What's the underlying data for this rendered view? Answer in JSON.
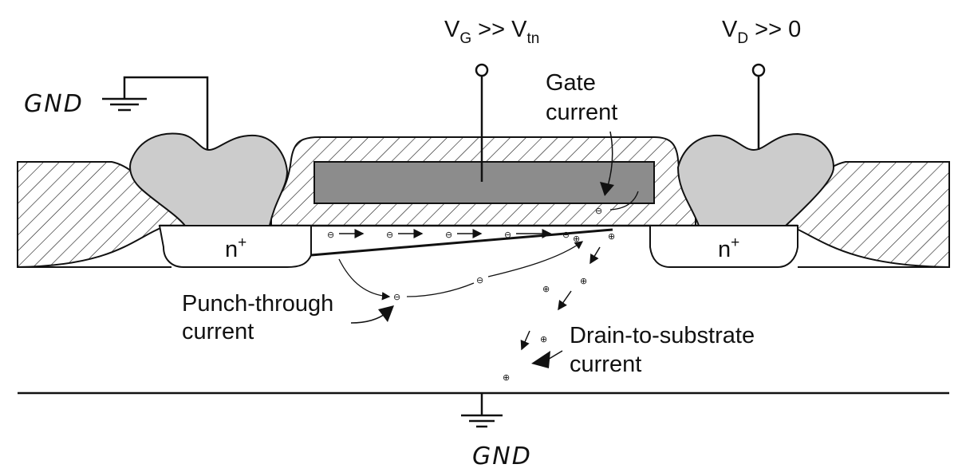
{
  "labels": {
    "gate_voltage": {
      "main": "V",
      "sub": "G",
      "rest": " >> V",
      "sub2": "tn"
    },
    "drain_voltage": {
      "main": "V",
      "sub": "D",
      "rest": " >> 0"
    },
    "gnd_top_left": "GND",
    "gnd_bottom": "GND",
    "gate_current_line1": "Gate",
    "gate_current_line2": "current",
    "n_plus_left": "n",
    "n_plus_right": "n",
    "n_plus_sup": "+",
    "punch_through_line1": "Punch-through",
    "punch_through_line2": "current",
    "drain_substrate_line1": "Drain-to-substrate",
    "drain_substrate_line2": "current"
  },
  "symbols": {
    "electron": "⊖",
    "hole": "⊕"
  },
  "colors": {
    "contact_fill": "#cccccc",
    "gate_fill": "#8c8c8c",
    "stroke": "#111111"
  }
}
